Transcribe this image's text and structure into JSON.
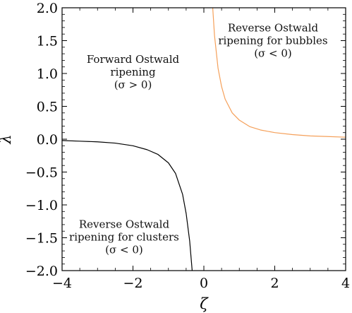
{
  "chart_data": {
    "type": "line",
    "xlabel": "ζ",
    "ylabel": "λ",
    "xlim": [
      -4,
      4
    ],
    "ylim": [
      -2,
      2
    ],
    "x_ticks": [
      -4,
      -2,
      0,
      2,
      4
    ],
    "x_tick_labels": [
      "−4",
      "−2",
      "0",
      "2",
      "4"
    ],
    "y_ticks": [
      2.0,
      1.5,
      1.0,
      0.5,
      0.0,
      -0.5,
      -1.0,
      -1.5,
      -2.0
    ],
    "y_tick_labels": [
      "2.0",
      "1.5",
      "1.0",
      "0.5",
      "0.0",
      "−0.5",
      "−1.0",
      "−1.5",
      "−2.0"
    ],
    "grid": false,
    "series": [
      {
        "color": "#000000",
        "x": [
          -4.0,
          -3.5,
          -3.0,
          -2.5,
          -2.0,
          -1.6,
          -1.3,
          -1.0,
          -0.8,
          -0.6,
          -0.5,
          -0.4,
          -0.33
        ],
        "y": [
          -0.02,
          -0.03,
          -0.04,
          -0.06,
          -0.1,
          -0.16,
          -0.23,
          -0.36,
          -0.52,
          -0.84,
          -1.13,
          -1.55,
          -2.0
        ]
      },
      {
        "color": "#f5a05a",
        "x": [
          0.25,
          0.3,
          0.4,
          0.5,
          0.6,
          0.8,
          1.0,
          1.3,
          1.6,
          2.0,
          2.5,
          3.0,
          3.5,
          4.0
        ],
        "y": [
          2.0,
          1.58,
          1.08,
          0.8,
          0.61,
          0.4,
          0.29,
          0.19,
          0.14,
          0.1,
          0.07,
          0.05,
          0.04,
          0.03
        ]
      }
    ],
    "annotations": [
      {
        "lines": [
          "Forward Ostwald",
          "ripening",
          "(σ > 0)"
        ],
        "x": -2.0,
        "y": 1.02
      },
      {
        "lines": [
          "Reverse Ostwald",
          "ripening for bubbles",
          "(σ < 0)"
        ],
        "x": 1.95,
        "y": 1.5
      },
      {
        "lines": [
          "Reverse Ostwald",
          "ripening for clusters",
          "(σ < 0)"
        ],
        "x": -2.25,
        "y": -1.49
      }
    ]
  }
}
